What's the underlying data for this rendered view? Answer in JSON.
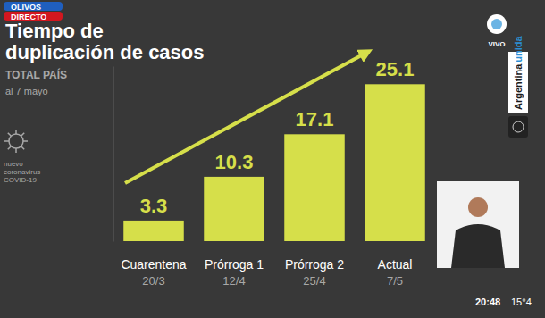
{
  "chart_data": {
    "type": "bar",
    "title": [
      "Tiempo de",
      "duplicación de casos"
    ],
    "subtitle": "TOTAL PAÍS",
    "annotations": [
      "al 7 mayo"
    ],
    "categories": [
      "Cuarentena",
      "Prórroga 1",
      "Prórroga 2",
      "Actual"
    ],
    "dates": [
      "20/3",
      "12/4",
      "25/4",
      "7/5"
    ],
    "values": [
      3.3,
      10.3,
      17.1,
      25.1
    ],
    "color": "#d6df4a",
    "ylim": [
      0,
      28
    ],
    "yticks": [],
    "grid": false,
    "data_labels": true,
    "tick_labels": false
  },
  "overlay": {
    "badge": [
      "OLIVOS",
      "DIRECTO"
    ],
    "live": "VIVO",
    "brand": [
      "Argentina",
      "unida"
    ],
    "virus": [
      "nuevo",
      "coronavirus",
      "COVID-19"
    ],
    "clock": "20:48",
    "temperature": "15°4"
  }
}
